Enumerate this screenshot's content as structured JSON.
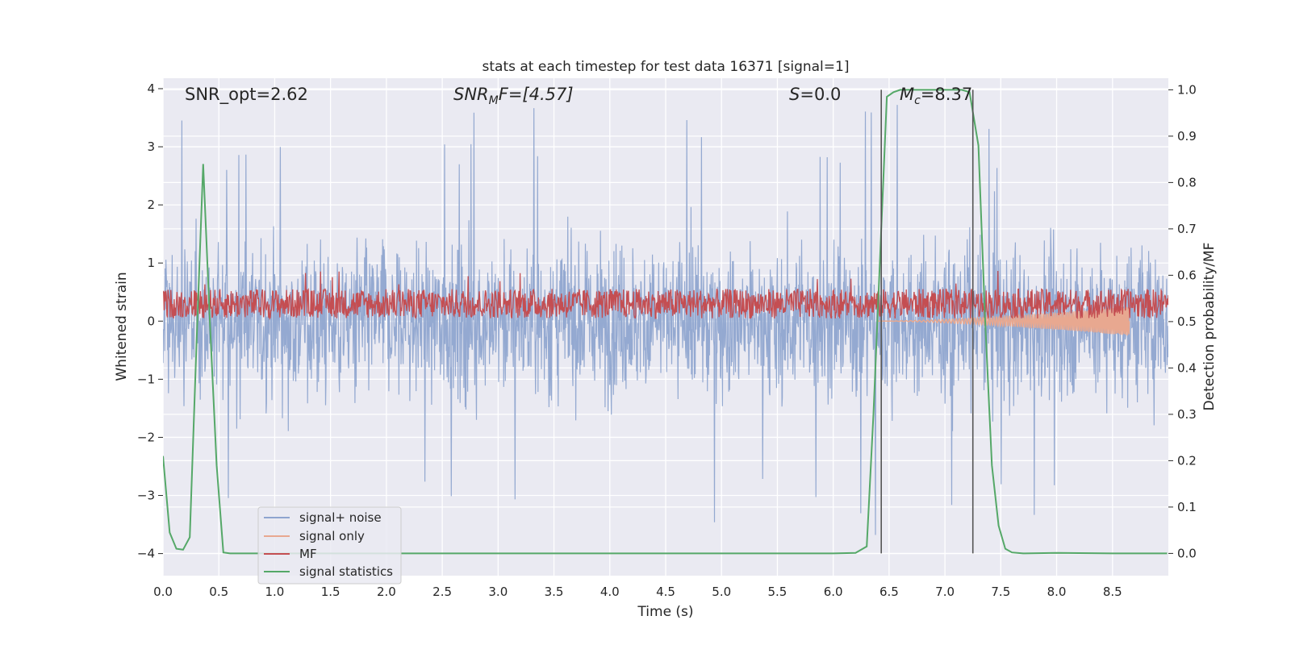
{
  "chart_data": {
    "type": "line",
    "title": "stats at each timestep for test data 16371 [signal=1]",
    "xlabel": "Time (s)",
    "ylabel_left": "Whitened strain",
    "ylabel_right": "Detection probability/MF",
    "xlim": [
      0.0,
      9.0
    ],
    "ylim_left": [
      -4.38,
      4.18
    ],
    "ylim_right": [
      -0.048,
      1.025
    ],
    "xticks": [
      "0.0",
      "0.5",
      "1.0",
      "1.5",
      "2.0",
      "2.5",
      "3.0",
      "3.5",
      "4.0",
      "4.5",
      "5.0",
      "5.5",
      "6.0",
      "6.5",
      "7.0",
      "7.5",
      "8.0",
      "8.5"
    ],
    "yticks_left": [
      "4",
      "3",
      "2",
      "1",
      "0",
      "−1",
      "−2",
      "−3",
      "−4"
    ],
    "yticks_right": [
      "1.0",
      "0.9",
      "0.8",
      "0.7",
      "0.6",
      "0.5",
      "0.4",
      "0.3",
      "0.2",
      "0.1",
      "0.0"
    ],
    "grid": true,
    "legend_position": "lower-left",
    "annotations": {
      "snr_opt": "SNR_opt=2.62",
      "snr_mf_main": "SNR",
      "snr_mf_sub": "M",
      "snr_mf_rest": "F=[4.57]",
      "s_italic": "S",
      "s_rest": "=0.0",
      "mc_italic": "M",
      "mc_sub": "c",
      "mc_rest": "=8.37"
    },
    "vlines_x": [
      6.43,
      7.25
    ],
    "series": [
      {
        "name": "signal+ noise",
        "color": "#8fa5cf",
        "description": "noisy whitened strain, roughly within ±2.5 with spikes to about ±3.8",
        "amplitude_typical": 2.4,
        "amplitude_peak": 3.8
      },
      {
        "name": "signal only",
        "color": "#e8a890",
        "description": "chirp signal near 0, growing from about t=6.4 to t=8.65",
        "start_x": 6.4,
        "end_x": 8.65,
        "amplitude_end": 0.25
      },
      {
        "name": "MF",
        "color": "#c44e52",
        "description": "matched-filter output band between about 0 and 0.6 strain units",
        "center": 0.3,
        "half_range": 0.3
      },
      {
        "name": "signal statistics",
        "color": "#55a868",
        "axis": "right",
        "x": [
          0.0,
          0.06,
          0.12,
          0.18,
          0.24,
          0.3,
          0.36,
          0.42,
          0.48,
          0.54,
          0.6,
          1.0,
          2.0,
          3.0,
          4.0,
          5.0,
          6.0,
          6.2,
          6.3,
          6.36,
          6.43,
          6.48,
          6.54,
          6.6,
          6.7,
          7.0,
          7.15,
          7.22,
          7.3,
          7.36,
          7.42,
          7.48,
          7.54,
          7.6,
          7.7,
          8.0,
          8.5,
          8.99
        ],
        "y": [
          0.21,
          0.045,
          0.01,
          0.008,
          0.035,
          0.45,
          0.84,
          0.5,
          0.19,
          0.002,
          0.0,
          0.0,
          0.0,
          0.0,
          0.0,
          0.0,
          0.0,
          0.001,
          0.015,
          0.3,
          0.7,
          0.985,
          0.995,
          1.0,
          1.0,
          1.0,
          1.0,
          0.995,
          0.88,
          0.5,
          0.19,
          0.06,
          0.01,
          0.002,
          0.0,
          0.001,
          0.0,
          0.0
        ]
      }
    ]
  }
}
